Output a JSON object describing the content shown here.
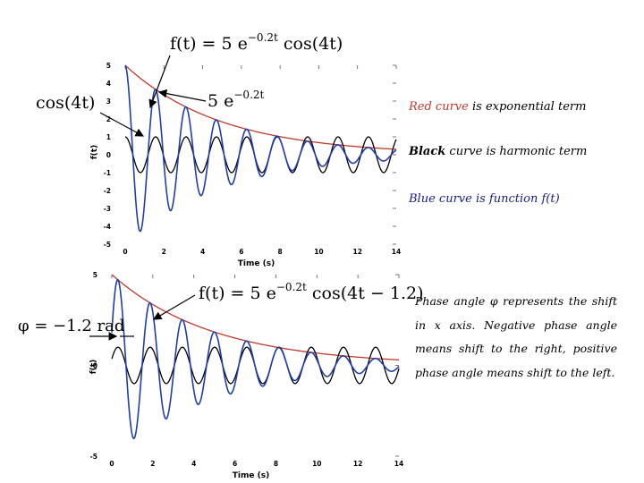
{
  "annotations": {
    "top_full_eq": "f(t) = 5 e^(−0.2t) cos(4t)",
    "top_harmonic": "cos(4t)",
    "top_exponential": "5 e^(−0.2t)",
    "bottom_full_eq": "f(t) = 5 e^(−0.2t) cos(4t − 1.2)",
    "bottom_phase": "φ = −1.2 rad"
  },
  "notes": {
    "red_word": "Red curve",
    "red_rest": " is exponential term",
    "black_word": "Black",
    "black_rest": " curve is harmonic term",
    "blue_text": "Blue curve is function f(t)",
    "phase_text": "Phase angle φ represents the shift in x axis. Negative phase angle means shift to the right, positive phase angle means shift to the left."
  },
  "chart_data": [
    {
      "type": "line",
      "xlabel": "Time (s)",
      "ylabel": "f(t)",
      "xlim": [
        0,
        14
      ],
      "ylim": [
        -5,
        5
      ],
      "xticks": [
        0,
        2,
        4,
        6,
        8,
        10,
        12,
        14
      ],
      "yticks": [
        -5,
        -4,
        -3,
        -2,
        -1,
        0,
        1,
        2,
        3,
        4,
        5
      ],
      "series": [
        {
          "color": "#c0392b",
          "expression": "5 e^(−0.2t)"
        },
        {
          "color": "#000000",
          "expression": "cos(4t)"
        },
        {
          "color": "#1f3fa8",
          "expression": "5 e^(−0.2t) cos(4t)"
        }
      ]
    },
    {
      "type": "line",
      "xlabel": "Time (s)",
      "ylabel": "f(t)",
      "xlim": [
        0,
        14
      ],
      "ylim": [
        -5,
        5
      ],
      "xticks": [
        0,
        2,
        4,
        6,
        8,
        10,
        12,
        14
      ],
      "yticks": [
        -5,
        0,
        5
      ],
      "series": [
        {
          "color": "#c0392b",
          "expression": "5 e^(−0.2t)"
        },
        {
          "color": "#000000",
          "expression": "cos(4t − 1.2)"
        },
        {
          "color": "#1f3fa8",
          "expression": "5 e^(−0.2t) cos(4t − 1.2)"
        }
      ]
    }
  ]
}
